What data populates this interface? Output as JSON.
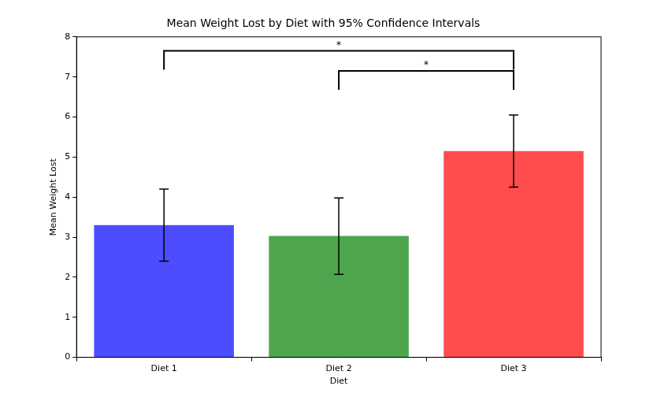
{
  "chart_data": {
    "type": "bar",
    "title": "Mean Weight Lost by Diet with 95% Confidence Intervals",
    "x_label": "Diet",
    "y_label": "Mean Weight Lost",
    "categories": [
      "Diet 1",
      "Diet 2",
      "Diet 3"
    ],
    "values": [
      3.3,
      3.03,
      5.15
    ],
    "ci_lower": [
      2.4,
      2.07,
      4.25
    ],
    "ci_upper": [
      4.2,
      3.98,
      6.05
    ],
    "colors": [
      "#4d4dff",
      "#4da64d",
      "#ff4d4d"
    ],
    "ylim": [
      0,
      8
    ],
    "yticks": [
      0,
      1,
      2,
      3,
      4,
      5,
      6,
      7,
      8
    ],
    "grid": false,
    "annotations": [
      {
        "from": "Diet 1",
        "to": "Diet 3",
        "y": 7.65,
        "label": "*"
      },
      {
        "from": "Diet 2",
        "to": "Diet 3",
        "y": 7.15,
        "label": "*"
      }
    ]
  }
}
